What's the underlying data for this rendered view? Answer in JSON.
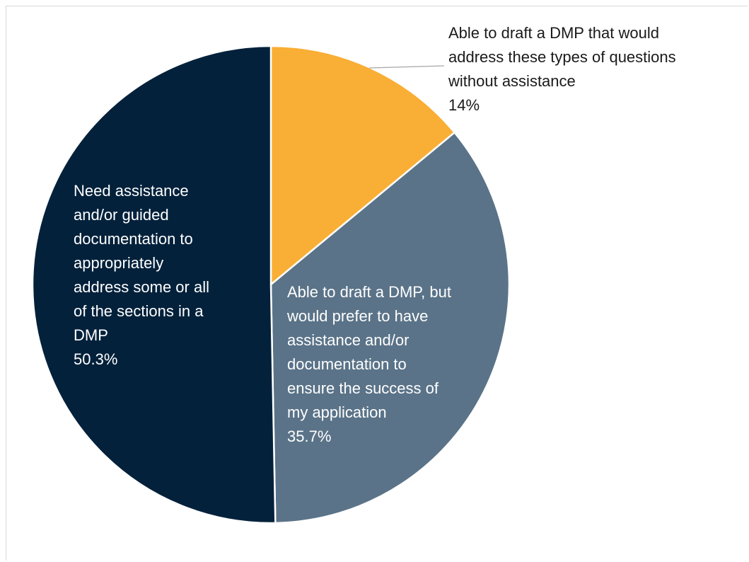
{
  "chart_data": {
    "type": "pie",
    "title": "",
    "start_angle_deg": 0,
    "direction": "clockwise",
    "slices": [
      {
        "label_lines": [
          "Able to draft a DMP that would",
          "address these types of questions",
          "without assistance"
        ],
        "value_label": "14%",
        "value": 14,
        "color": "#F9AE35",
        "label_color": "#1a1a1a",
        "label_placement": "outside-with-leader"
      },
      {
        "label_lines": [
          "Able to draft a DMP, but",
          "would prefer to have",
          "assistance and/or",
          "documentation to",
          "ensure the success of",
          "my application"
        ],
        "value_label": "35.7%",
        "value": 35.7,
        "color": "#5A7388",
        "label_color": "#ffffff",
        "label_placement": "inside"
      },
      {
        "label_lines": [
          "Need assistance",
          "and/or guided",
          "documentation to",
          "appropriately",
          "address some or all",
          "of the sections in a",
          "DMP"
        ],
        "value_label": "50.3%",
        "value": 50.3,
        "color": "#03213B",
        "label_color": "#ffffff",
        "label_placement": "inside"
      }
    ],
    "slice_border_color": "#ffffff",
    "leader_line_color": "#a6a6a6",
    "legend": "none"
  }
}
